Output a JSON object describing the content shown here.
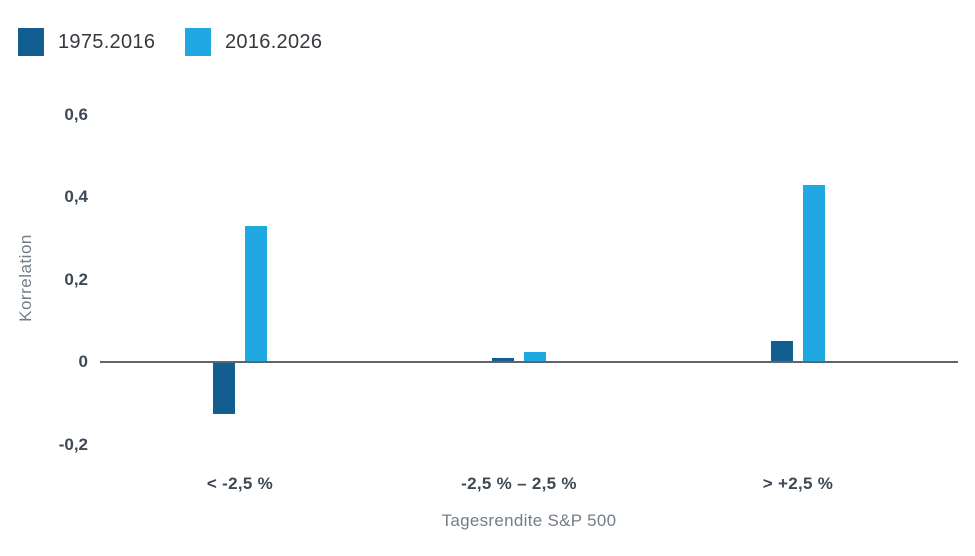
{
  "chart_data": {
    "type": "bar",
    "categories": [
      "< -2,5 %",
      "-2,5 % – 2,5 %",
      "> +2,5 %"
    ],
    "series": [
      {
        "name": "1975.2016",
        "color": "#135E91",
        "values": [
          -0.125,
          0.01,
          0.05
        ]
      },
      {
        "name": "2016.2026",
        "color": "#1FA8E1",
        "values": [
          0.33,
          0.025,
          0.43
        ]
      }
    ],
    "title": "",
    "xlabel": "Tagesrendite S&P 500",
    "ylabel": "Korrelation",
    "yticks": {
      "values": [
        0.6,
        0.4,
        0.2,
        0,
        -0.2
      ],
      "labels": [
        "0,6",
        "0,4",
        "0,2",
        "0",
        "-0,2"
      ]
    },
    "ylim": [
      -0.28,
      0.68
    ],
    "grid": false,
    "legend_position": "top-left"
  },
  "colors": {
    "background": "#FFFFFF",
    "axis_line": "#5C6670",
    "tick_text": "#3E4955",
    "muted_text": "#737D87",
    "legend_text": "#35393E"
  }
}
